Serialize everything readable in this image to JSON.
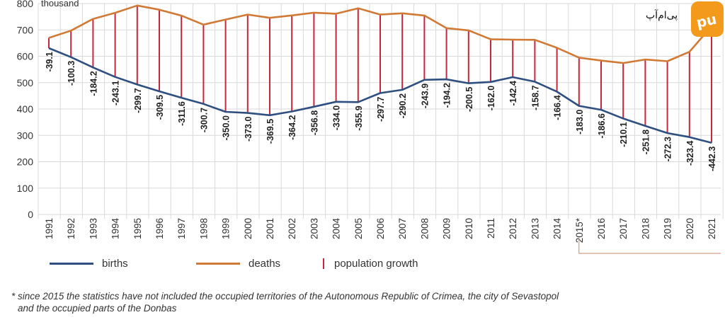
{
  "chart_data": {
    "type": "line",
    "unit_label": "thousand",
    "x": [
      "1991",
      "1992",
      "1993",
      "1994",
      "1995",
      "1996",
      "1997",
      "1998",
      "1999",
      "2000",
      "2001",
      "2002",
      "2003",
      "2004",
      "2005",
      "2006",
      "2007",
      "2008",
      "2009",
      "2010",
      "2011",
      "2012",
      "2013",
      "2014",
      "2015*",
      "2016",
      "2017",
      "2018",
      "2019",
      "2020",
      "2021"
    ],
    "ylim": [
      0,
      800
    ],
    "yticks": [
      0,
      100,
      200,
      300,
      400,
      500,
      600,
      700,
      800
    ],
    "grid": true,
    "legend_position": "bottom-left",
    "series": [
      {
        "name": "births",
        "color": "#2e4f7f",
        "values": [
          630.8,
          596.8,
          557.5,
          521.6,
          492.9,
          467.2,
          442.6,
          419.2,
          389.2,
          385.1,
          376.5,
          390.7,
          408.6,
          427.3,
          426.1,
          460.4,
          472.7,
          510.6,
          512.5,
          497.7,
          502.6,
          520.7,
          503.7,
          465.9,
          411.8,
          397.0,
          364.1,
          335.9,
          308.8,
          293.5,
          271.9
        ]
      },
      {
        "name": "deaths",
        "color": "#d17a36",
        "values": [
          669.9,
          697.1,
          741.7,
          764.7,
          792.6,
          776.7,
          754.2,
          719.9,
          739.2,
          758.1,
          745.9,
          754.9,
          765.4,
          761.3,
          782.0,
          758.1,
          762.9,
          754.5,
          706.7,
          698.2,
          664.6,
          663.1,
          662.4,
          632.3,
          594.8,
          583.6,
          574.2,
          587.7,
          581.1,
          616.9,
          714.2
        ]
      },
      {
        "name": "population growth",
        "color": "#c8273b",
        "values": [
          -39.1,
          -100.3,
          -184.2,
          -243.1,
          -299.7,
          -309.5,
          -311.6,
          -300.7,
          -350.0,
          -373.0,
          -369.5,
          -364.2,
          -356.8,
          -334.0,
          -355.9,
          -297.7,
          -290.2,
          -243.9,
          -194.2,
          -200.5,
          -162.0,
          -142.4,
          -158.7,
          -166.4,
          -183.0,
          -186.6,
          -210.1,
          -251.8,
          -272.3,
          -323.4,
          -442.3
        ]
      }
    ],
    "growth_labels": [
      "-39.1",
      "-100.3",
      "-184.2",
      "-243.1",
      "-299.7",
      "-309.5",
      "-311.6",
      "-300.7",
      "-350.0",
      "-373.0",
      "-369.5",
      "-364.2",
      "-356.8",
      "-334.0",
      "-355.9",
      "-297.7",
      "-290.2",
      "-243.9",
      "-194.2",
      "-200.5",
      "-162.0",
      "-142.4",
      "-158.7",
      "-166.4",
      "-183.0",
      "-186.6",
      "-210.1",
      "-251.8",
      "-272.3",
      "-323.4",
      "-442.3"
    ]
  },
  "legend": {
    "births": "births",
    "deaths": "deaths",
    "growth": "population growth"
  },
  "footnote": {
    "line1": "* since 2015 the statistics have not included the occupied territories of the Autonomous Republic of Crimea, the city of Sevastopol",
    "line2": "and the occupied parts of the Donbas"
  },
  "colors": {
    "births": "#2e4f7f",
    "deaths": "#d17a36",
    "growth": "#c8273b",
    "grid": "#d9d9d9",
    "bracket": "#c9876a",
    "logo_badge": "#f39a1c"
  },
  "logo": {
    "text": "پی‌ام‌آپ"
  }
}
